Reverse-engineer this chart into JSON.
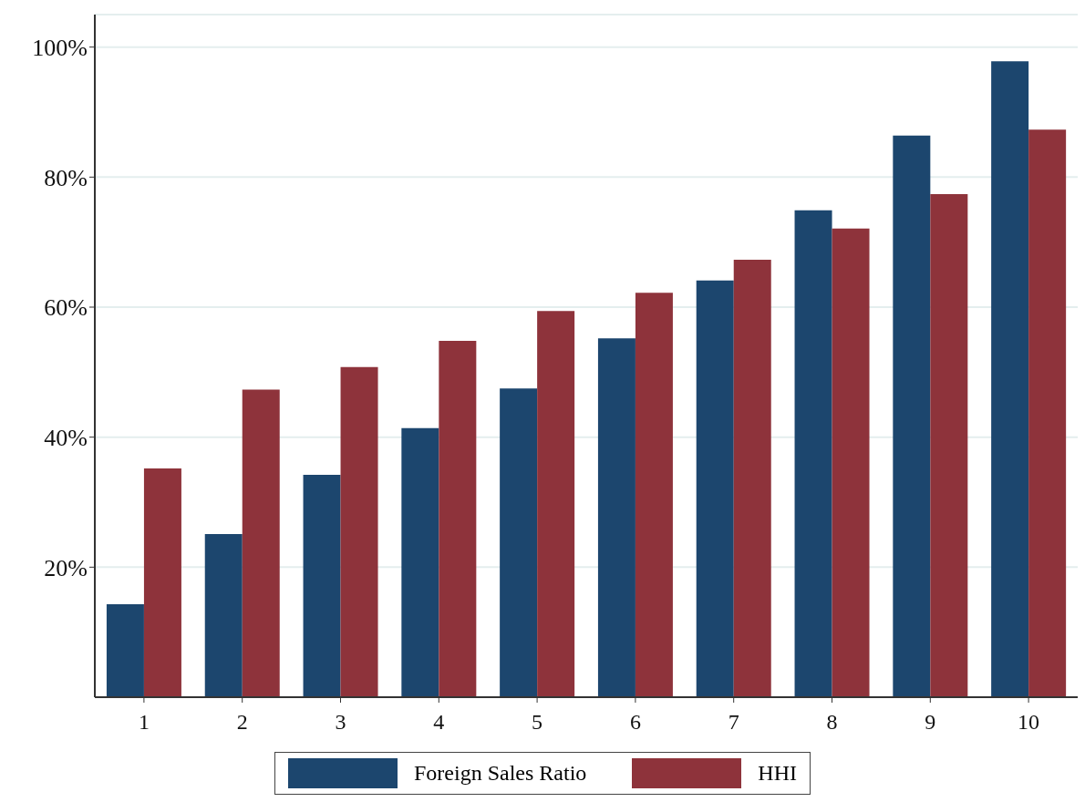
{
  "chart_data": {
    "type": "bar",
    "categories": [
      "1",
      "2",
      "3",
      "4",
      "5",
      "6",
      "7",
      "8",
      "9",
      "10"
    ],
    "series": [
      {
        "name": "Foreign Sales Ratio",
        "color": "#1c466e",
        "values": [
          14.3,
          25.1,
          34.2,
          41.4,
          47.5,
          55.2,
          64.1,
          74.9,
          86.4,
          97.8
        ]
      },
      {
        "name": "HHI",
        "color": "#8e333b",
        "values": [
          35.2,
          47.3,
          50.8,
          54.8,
          59.4,
          62.2,
          67.3,
          72.1,
          77.4,
          87.3
        ]
      }
    ],
    "ylim": [
      0,
      105
    ],
    "yticks": [
      {
        "value": 20,
        "label": "20%"
      },
      {
        "value": 40,
        "label": "40%"
      },
      {
        "value": 60,
        "label": "60%"
      },
      {
        "value": 80,
        "label": "80%"
      },
      {
        "value": 100,
        "label": "100%"
      }
    ],
    "grid": "y",
    "legend": "bottom"
  }
}
